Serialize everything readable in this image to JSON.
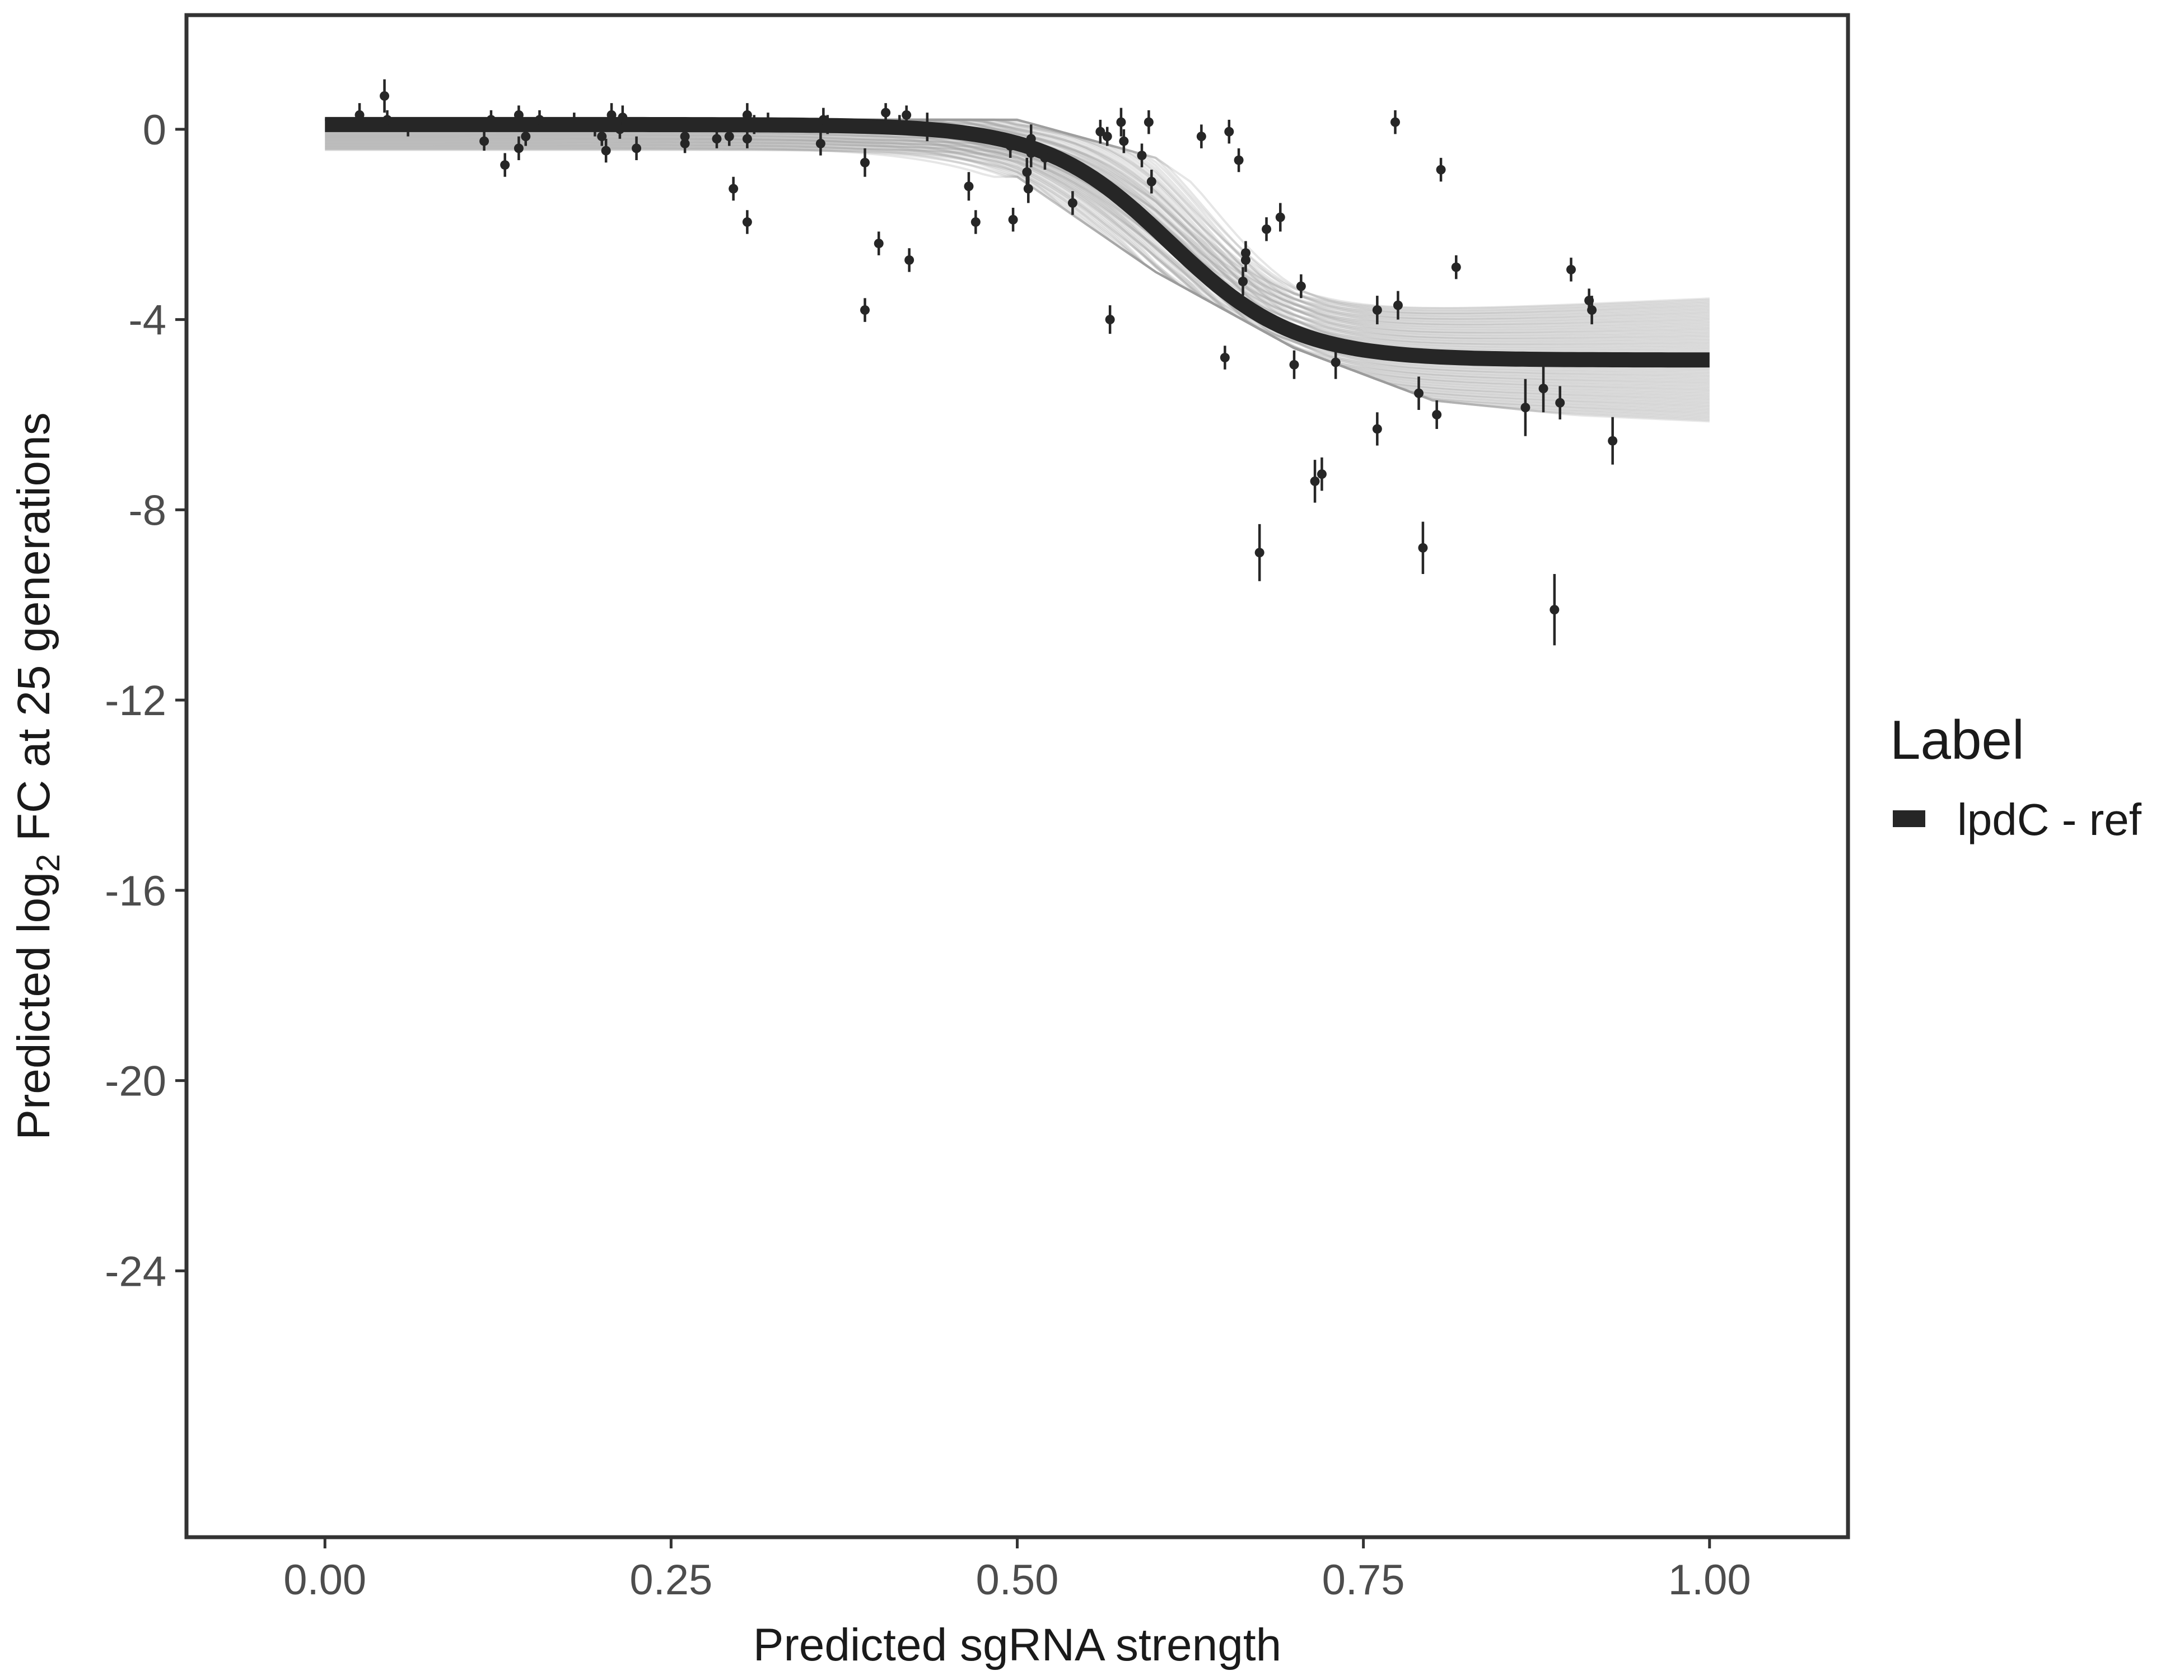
{
  "chart_data": {
    "type": "scatter",
    "xlabel": "Predicted sgRNA strength",
    "ylabel": {
      "prefix": "Predicted  log",
      "subscript": "2",
      "suffix": " FC at 25 generations"
    },
    "xlim": [
      -0.1,
      1.1
    ],
    "ylim": [
      -29.6,
      2.4
    ],
    "x_ticks": [
      {
        "value": 0.0,
        "label": "0.00"
      },
      {
        "value": 0.25,
        "label": "0.25"
      },
      {
        "value": 0.5,
        "label": "0.50"
      },
      {
        "value": 0.75,
        "label": "0.75"
      },
      {
        "value": 1.0,
        "label": "1.00"
      }
    ],
    "y_ticks": [
      {
        "value": 0,
        "label": "0"
      },
      {
        "value": -4,
        "label": "-4"
      },
      {
        "value": -8,
        "label": "-8"
      },
      {
        "value": -12,
        "label": "-12"
      },
      {
        "value": -16,
        "label": "-16"
      },
      {
        "value": -20,
        "label": "-20"
      },
      {
        "value": -24,
        "label": "-24"
      }
    ],
    "grid": false,
    "legend": {
      "title": "Label",
      "position": "right",
      "entries": [
        {
          "label": "lpdC - ref",
          "color": "#262626"
        }
      ]
    },
    "colors": {
      "fit_line": "#262626",
      "posterior_lines": "#9a9a9a",
      "points": "#262626",
      "frame": "#333333"
    },
    "fit_curve": {
      "model": "logistic",
      "x_range": [
        0,
        1
      ],
      "upper": 0.1,
      "lower": -4.85,
      "midpoint": 0.61,
      "scale": 0.045
    },
    "posterior_band": {
      "at_x": [
        0.5,
        0.6,
        0.7,
        0.8,
        1.0
      ],
      "lower": [
        -1.0,
        -3.0,
        -4.6,
        -5.7,
        -6.3
      ],
      "upper": [
        0.2,
        -0.6,
        -2.6,
        -3.4,
        -3.4
      ]
    },
    "points": [
      {
        "x": 0.025,
        "y": 0.3,
        "err": 0.25
      },
      {
        "x": 0.043,
        "y": 0.7,
        "err": 0.35
      },
      {
        "x": 0.045,
        "y": 0.2,
        "err": 0.2
      },
      {
        "x": 0.06,
        "y": 0.05,
        "err": 0.2
      },
      {
        "x": 0.115,
        "y": -0.25,
        "err": 0.2
      },
      {
        "x": 0.12,
        "y": 0.2,
        "err": 0.2
      },
      {
        "x": 0.13,
        "y": -0.75,
        "err": 0.25
      },
      {
        "x": 0.14,
        "y": -0.4,
        "err": 0.25
      },
      {
        "x": 0.14,
        "y": 0.3,
        "err": 0.2
      },
      {
        "x": 0.145,
        "y": -0.15,
        "err": 0.2
      },
      {
        "x": 0.155,
        "y": 0.2,
        "err": 0.2
      },
      {
        "x": 0.18,
        "y": 0.15,
        "err": 0.2
      },
      {
        "x": 0.195,
        "y": 0.05,
        "err": 0.2
      },
      {
        "x": 0.2,
        "y": -0.15,
        "err": 0.2
      },
      {
        "x": 0.203,
        "y": -0.45,
        "err": 0.25
      },
      {
        "x": 0.207,
        "y": 0.3,
        "err": 0.25
      },
      {
        "x": 0.213,
        "y": 0.0,
        "err": 0.2
      },
      {
        "x": 0.215,
        "y": 0.25,
        "err": 0.25
      },
      {
        "x": 0.225,
        "y": -0.4,
        "err": 0.25
      },
      {
        "x": 0.26,
        "y": -0.15,
        "err": 0.2
      },
      {
        "x": 0.26,
        "y": -0.3,
        "err": 0.2
      },
      {
        "x": 0.283,
        "y": -0.2,
        "err": 0.2
      },
      {
        "x": 0.292,
        "y": -0.15,
        "err": 0.2
      },
      {
        "x": 0.295,
        "y": -1.25,
        "err": 0.25
      },
      {
        "x": 0.305,
        "y": -0.2,
        "err": 0.2
      },
      {
        "x": 0.305,
        "y": -1.95,
        "err": 0.25
      },
      {
        "x": 0.305,
        "y": 0.3,
        "err": 0.25
      },
      {
        "x": 0.31,
        "y": 0.1,
        "err": 0.2
      },
      {
        "x": 0.32,
        "y": 0.15,
        "err": 0.2
      },
      {
        "x": 0.358,
        "y": -0.3,
        "err": 0.25
      },
      {
        "x": 0.36,
        "y": 0.2,
        "err": 0.25
      },
      {
        "x": 0.363,
        "y": 0.1,
        "err": 0.2
      },
      {
        "x": 0.39,
        "y": -0.7,
        "err": 0.3
      },
      {
        "x": 0.39,
        "y": -3.8,
        "err": 0.25
      },
      {
        "x": 0.4,
        "y": -2.4,
        "err": 0.25
      },
      {
        "x": 0.405,
        "y": 0.35,
        "err": 0.2
      },
      {
        "x": 0.415,
        "y": 0.1,
        "err": 0.2
      },
      {
        "x": 0.42,
        "y": 0.3,
        "err": 0.2
      },
      {
        "x": 0.422,
        "y": -2.75,
        "err": 0.25
      },
      {
        "x": 0.435,
        "y": 0.05,
        "err": 0.3
      },
      {
        "x": 0.465,
        "y": -1.2,
        "err": 0.3
      },
      {
        "x": 0.47,
        "y": -1.95,
        "err": 0.25
      },
      {
        "x": 0.495,
        "y": -0.35,
        "err": 0.25
      },
      {
        "x": 0.497,
        "y": -1.9,
        "err": 0.25
      },
      {
        "x": 0.507,
        "y": -0.9,
        "err": 0.3
      },
      {
        "x": 0.508,
        "y": -1.25,
        "err": 0.3
      },
      {
        "x": 0.51,
        "y": -0.2,
        "err": 0.3
      },
      {
        "x": 0.51,
        "y": -0.5,
        "err": 0.3
      },
      {
        "x": 0.52,
        "y": -0.6,
        "err": 0.25
      },
      {
        "x": 0.54,
        "y": -1.55,
        "err": 0.25
      },
      {
        "x": 0.56,
        "y": -0.05,
        "err": 0.25
      },
      {
        "x": 0.565,
        "y": -0.15,
        "err": 0.2
      },
      {
        "x": 0.567,
        "y": -4.0,
        "err": 0.3
      },
      {
        "x": 0.575,
        "y": 0.15,
        "err": 0.3
      },
      {
        "x": 0.577,
        "y": -0.25,
        "err": 0.25
      },
      {
        "x": 0.59,
        "y": -0.55,
        "err": 0.25
      },
      {
        "x": 0.595,
        "y": 0.15,
        "err": 0.25
      },
      {
        "x": 0.597,
        "y": -1.1,
        "err": 0.25
      },
      {
        "x": 0.633,
        "y": -0.15,
        "err": 0.25
      },
      {
        "x": 0.65,
        "y": -4.8,
        "err": 0.25
      },
      {
        "x": 0.653,
        "y": -0.05,
        "err": 0.25
      },
      {
        "x": 0.66,
        "y": -0.65,
        "err": 0.25
      },
      {
        "x": 0.663,
        "y": -3.2,
        "err": 0.3
      },
      {
        "x": 0.665,
        "y": -2.6,
        "err": 0.25
      },
      {
        "x": 0.665,
        "y": -2.75,
        "err": 0.25
      },
      {
        "x": 0.675,
        "y": -8.9,
        "err": 0.6
      },
      {
        "x": 0.68,
        "y": -2.1,
        "err": 0.25
      },
      {
        "x": 0.69,
        "y": -1.85,
        "err": 0.3
      },
      {
        "x": 0.7,
        "y": -4.95,
        "err": 0.3
      },
      {
        "x": 0.705,
        "y": -3.3,
        "err": 0.25
      },
      {
        "x": 0.715,
        "y": -7.4,
        "err": 0.45
      },
      {
        "x": 0.72,
        "y": -7.25,
        "err": 0.35
      },
      {
        "x": 0.73,
        "y": -4.9,
        "err": 0.35
      },
      {
        "x": 0.76,
        "y": -3.8,
        "err": 0.3
      },
      {
        "x": 0.76,
        "y": -6.3,
        "err": 0.35
      },
      {
        "x": 0.773,
        "y": 0.15,
        "err": 0.25
      },
      {
        "x": 0.775,
        "y": -3.7,
        "err": 0.3
      },
      {
        "x": 0.79,
        "y": -5.55,
        "err": 0.35
      },
      {
        "x": 0.793,
        "y": -8.8,
        "err": 0.55
      },
      {
        "x": 0.803,
        "y": -6.0,
        "err": 0.3
      },
      {
        "x": 0.806,
        "y": -0.85,
        "err": 0.25
      },
      {
        "x": 0.817,
        "y": -2.9,
        "err": 0.25
      },
      {
        "x": 0.867,
        "y": -5.85,
        "err": 0.6
      },
      {
        "x": 0.88,
        "y": -5.45,
        "err": 0.5
      },
      {
        "x": 0.888,
        "y": -10.1,
        "err": 0.75
      },
      {
        "x": 0.892,
        "y": -5.75,
        "err": 0.35
      },
      {
        "x": 0.9,
        "y": -2.95,
        "err": 0.25
      },
      {
        "x": 0.913,
        "y": -3.6,
        "err": 0.25
      },
      {
        "x": 0.915,
        "y": -3.8,
        "err": 0.3
      },
      {
        "x": 0.93,
        "y": -6.55,
        "err": 0.5
      }
    ]
  }
}
